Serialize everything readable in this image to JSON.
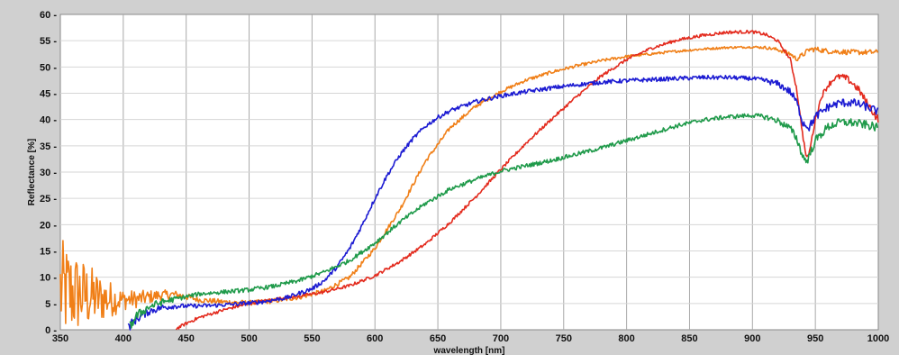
{
  "chart_data": {
    "type": "line",
    "title": "",
    "xlabel": "wavelength [nm]",
    "ylabel": "Reflectance [%]",
    "xlim": [
      350,
      1000
    ],
    "ylim": [
      0,
      60
    ],
    "xticks": [
      350,
      400,
      450,
      500,
      550,
      600,
      650,
      700,
      750,
      800,
      850,
      900,
      950,
      1000
    ],
    "yticks": [
      0,
      5,
      10,
      15,
      20,
      25,
      30,
      35,
      40,
      45,
      50,
      55,
      60
    ],
    "grid": true,
    "legend": "none",
    "series": [
      {
        "color": "#f07f17",
        "noise": [
          [
            350,
            10
          ],
          [
            380,
            5
          ],
          [
            400,
            2
          ],
          [
            430,
            1
          ],
          [
            460,
            0.5
          ],
          [
            900,
            0.2
          ],
          [
            940,
            0.5
          ],
          [
            1000,
            0.5
          ]
        ],
        "x": [
          350,
          360,
          370,
          380,
          390,
          400,
          410,
          420,
          430,
          440,
          450,
          460,
          480,
          500,
          520,
          540,
          560,
          580,
          600,
          620,
          640,
          660,
          680,
          700,
          720,
          740,
          760,
          780,
          800,
          820,
          840,
          860,
          880,
          900,
          910,
          920,
          930,
          935,
          940,
          945,
          950,
          960,
          980,
          1000
        ],
        "y": [
          7.5,
          7,
          6.5,
          6,
          5.8,
          5.7,
          5.8,
          6.2,
          6.6,
          6.7,
          6.3,
          5.7,
          5.3,
          5.1,
          5.5,
          6.2,
          7.4,
          10,
          15.5,
          23,
          32,
          38.5,
          42.5,
          45.3,
          47.5,
          49,
          50.2,
          51.2,
          52,
          52.5,
          53,
          53.4,
          53.7,
          53.8,
          53.7,
          53.3,
          52.5,
          51.5,
          52.3,
          53.3,
          53.4,
          53,
          52.8,
          52.8
        ]
      },
      {
        "color": "#e32b1e",
        "noise": [
          [
            440,
            0.3
          ],
          [
            930,
            0.3
          ],
          [
            1000,
            0.8
          ]
        ],
        "x": [
          442,
          450,
          460,
          480,
          500,
          520,
          540,
          560,
          580,
          600,
          620,
          640,
          660,
          680,
          700,
          720,
          740,
          760,
          780,
          800,
          820,
          840,
          860,
          880,
          900,
          910,
          920,
          930,
          935,
          940,
          943,
          945,
          950,
          955,
          960,
          965,
          970,
          975,
          980,
          985,
          990,
          1000
        ],
        "y": [
          0.2,
          1.2,
          2.3,
          3.8,
          5,
          5.8,
          6.4,
          7.2,
          8.4,
          10.3,
          13,
          16.3,
          20.5,
          25.3,
          30.5,
          35.5,
          40,
          44.3,
          48.3,
          51.4,
          53.6,
          55.1,
          56,
          56.6,
          56.7,
          56.2,
          55,
          51.5,
          46,
          37,
          32.5,
          33.5,
          40,
          44.5,
          46.5,
          47.8,
          48.2,
          47.8,
          46.8,
          45.5,
          43.5,
          40
        ]
      },
      {
        "color": "#1c1bd2",
        "noise": [
          [
            400,
            1
          ],
          [
            450,
            0.4
          ],
          [
            900,
            0.4
          ],
          [
            940,
            0.8
          ],
          [
            1000,
            0.8
          ]
        ],
        "x": [
          404,
          410,
          420,
          430,
          440,
          450,
          470,
          490,
          510,
          530,
          550,
          560,
          570,
          580,
          590,
          600,
          610,
          620,
          630,
          640,
          650,
          660,
          680,
          700,
          720,
          740,
          760,
          780,
          800,
          820,
          840,
          860,
          880,
          900,
          910,
          920,
          930,
          935,
          940,
          945,
          950,
          960,
          970,
          980,
          990,
          1000
        ],
        "y": [
          0.5,
          2,
          3.5,
          4.2,
          4.5,
          4.5,
          4.6,
          4.9,
          5.3,
          6.1,
          7.8,
          9.4,
          12,
          15.5,
          20,
          25,
          29.5,
          33.3,
          36.3,
          38.7,
          40.4,
          41.7,
          43.4,
          44.5,
          45.3,
          46,
          46.6,
          47.1,
          47.4,
          47.6,
          47.8,
          48,
          48,
          47.8,
          47.4,
          46.8,
          45.3,
          43.4,
          39.5,
          38.5,
          40.5,
          42.4,
          43.2,
          43.2,
          42.5,
          41.5
        ]
      },
      {
        "color": "#1f9a4a",
        "noise": [
          [
            405,
            1
          ],
          [
            450,
            0.4
          ],
          [
            900,
            0.4
          ],
          [
            940,
            0.8
          ],
          [
            1000,
            0.8
          ]
        ],
        "x": [
          405,
          410,
          420,
          430,
          440,
          450,
          460,
          480,
          500,
          520,
          540,
          560,
          580,
          600,
          620,
          640,
          660,
          680,
          700,
          720,
          740,
          760,
          780,
          800,
          820,
          840,
          860,
          880,
          900,
          910,
          920,
          930,
          935,
          940,
          943,
          945,
          950,
          960,
          970,
          980,
          990,
          1000
        ],
        "y": [
          0.5,
          2.5,
          4.3,
          5.2,
          5.8,
          6.3,
          6.8,
          7.2,
          7.6,
          8.3,
          9.4,
          11,
          13.2,
          16.5,
          20.5,
          24,
          26.8,
          28.6,
          30.2,
          31.2,
          32.2,
          33.4,
          34.6,
          36,
          37.4,
          38.8,
          39.9,
          40.5,
          40.8,
          40.5,
          39.8,
          38.3,
          36.5,
          33,
          32,
          33,
          36,
          38.6,
          39.5,
          39.4,
          39,
          38.4
        ]
      }
    ]
  }
}
